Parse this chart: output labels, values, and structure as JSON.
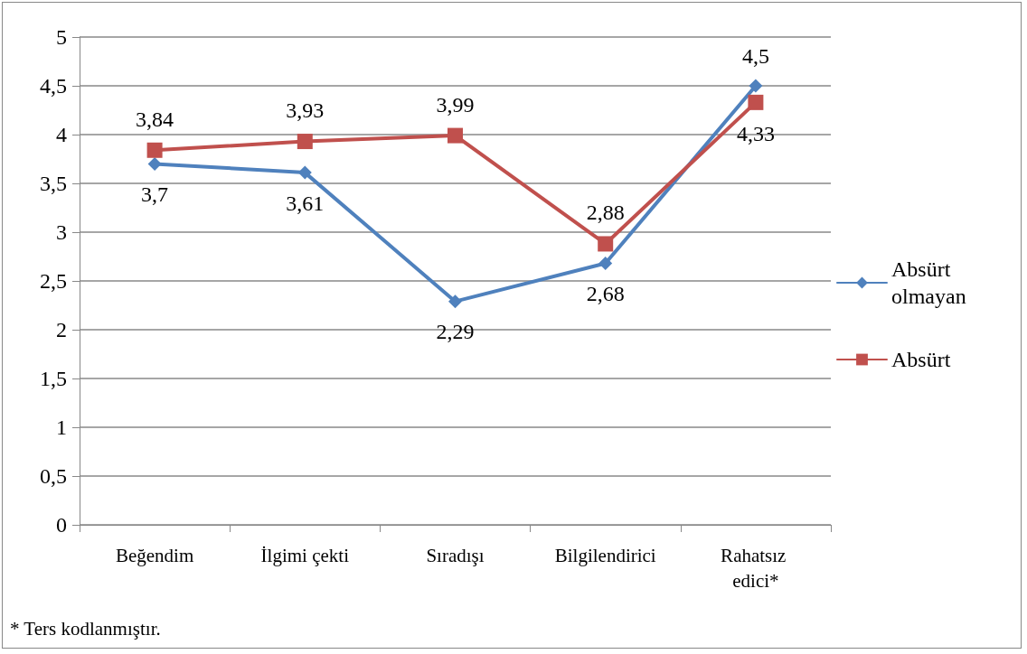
{
  "chart_data": {
    "type": "line",
    "categories": [
      "Beğendim",
      "İlgimi çekti",
      "Sıradışı",
      "Bilgilendirici",
      "Rahatsız edici*"
    ],
    "series": [
      {
        "name": "Absürt olmayan",
        "color": "#4f81bd",
        "marker": "diamond",
        "values": [
          3.7,
          3.61,
          2.29,
          2.68,
          4.5
        ],
        "value_labels": [
          "3,7",
          "3,61",
          "2,29",
          "2,68",
          "4,5"
        ]
      },
      {
        "name": "Absürt",
        "color": "#c0504d",
        "marker": "square",
        "values": [
          3.84,
          3.93,
          3.99,
          2.88,
          4.33
        ],
        "value_labels": [
          "3,84",
          "3,93",
          "3,99",
          "2,88",
          "4,33"
        ]
      }
    ],
    "ylim": [
      0,
      5
    ],
    "yticks": [
      0,
      {
        "value": 0.5,
        "label": "0,5"
      },
      1,
      {
        "value": 1.5,
        "label": "1,5"
      },
      2,
      {
        "value": 2.5,
        "label": "2,5"
      },
      3,
      {
        "value": 3.5,
        "label": "3,5"
      },
      4,
      {
        "value": 4.5,
        "label": "4,5"
      },
      5
    ],
    "grid": "y",
    "legend": "right",
    "annotations": [
      "* Ters kodlanmıştır."
    ]
  }
}
